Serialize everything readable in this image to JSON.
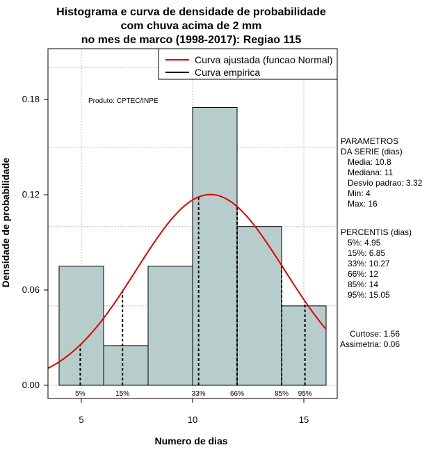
{
  "chart_data": {
    "type": "bar",
    "title_lines": [
      "Histograma e curva de densidade de probabilidade",
      "com chuva acima de 2 mm",
      "no mes de marco (1998-2017): Regiao 115"
    ],
    "xlabel": "Numero de dias",
    "ylabel": "Densidade de probabilidade",
    "xlim": [
      3.5,
      16.5
    ],
    "ylim": [
      0,
      0.21
    ],
    "x_ticks": [
      5,
      10,
      15
    ],
    "y_ticks": [
      0.0,
      0.06,
      0.12,
      0.18
    ],
    "y_tick_labels": [
      "0.00",
      "0.06",
      "0.12",
      "0.18"
    ],
    "bins": [
      {
        "from": 4,
        "to": 6,
        "density": 0.075
      },
      {
        "from": 6,
        "to": 8,
        "density": 0.025
      },
      {
        "from": 8,
        "to": 10,
        "density": 0.075
      },
      {
        "from": 10,
        "to": 12,
        "density": 0.175
      },
      {
        "from": 12,
        "to": 14,
        "density": 0.1
      },
      {
        "from": 14,
        "to": 16,
        "density": 0.05
      }
    ],
    "bar_color": "#b7cdcb",
    "normal_curve": {
      "mean": 10.8,
      "sd": 3.32,
      "color": "#dd0000"
    },
    "percentile_markers": [
      {
        "label": "5%",
        "value": 4.95
      },
      {
        "label": "15%",
        "value": 6.85
      },
      {
        "label": "33%",
        "value": 10.27
      },
      {
        "label": "66%",
        "value": 12
      },
      {
        "label": "85%",
        "value": 14
      },
      {
        "label": "95%",
        "value": 15.05
      }
    ],
    "legend": {
      "position": "top-right",
      "entries": [
        {
          "label": "Curva ajustada (funcao Normal)",
          "color": "#dd0000"
        },
        {
          "label": "Curva empirica",
          "color": "#000000"
        }
      ]
    },
    "annotation": "Produto: CPTEC/INPE",
    "grid": true
  },
  "side_panel": {
    "params_lines": [
      "PARAMETROS",
      "DA SERIE (dias)",
      "   Media: 10.8",
      "   Mediana: 11",
      "   Desvio padrao: 3.32",
      "   Min: 4",
      "   Max: 16"
    ],
    "percentis_lines": [
      "PERCENTIS (dias)",
      "   5%: 4.95",
      "   15%: 6.85",
      "   33%: 10.27",
      "   66%: 12",
      "   85%: 14",
      "   95%: 15.05"
    ],
    "stats_lines": [
      "Curtose: 1.56",
      "Assimetria: 0.06"
    ]
  }
}
